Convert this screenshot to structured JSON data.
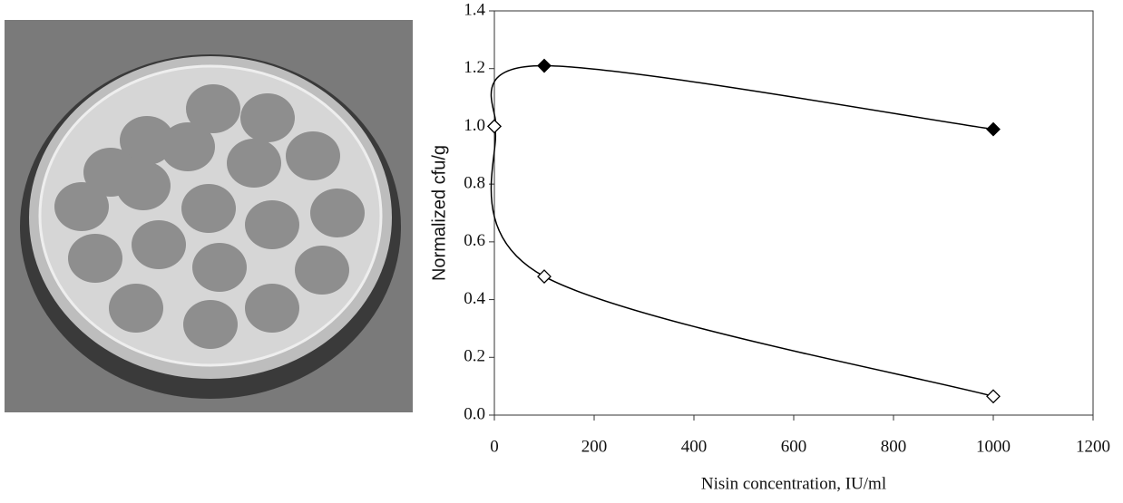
{
  "chart_data": {
    "type": "line",
    "xlabel": "Nisin concentration,  IU/ml",
    "ylabel": "Normalized cfu/g",
    "x": [
      0,
      100,
      1000
    ],
    "series": [
      {
        "color": "#000000",
        "marker_fill": "#000000",
        "values": [
          1.0,
          1.21,
          0.99
        ]
      },
      {
        "color": "#000000",
        "marker_fill": "#ffffff",
        "values": [
          1.0,
          0.48,
          0.065
        ]
      }
    ],
    "xlim": [
      0,
      1200
    ],
    "xticks": [
      0,
      200,
      400,
      600,
      800,
      1000,
      1200
    ],
    "ylim": [
      0,
      1.4
    ],
    "yticks": [
      {
        "value": 0,
        "label": "0.0"
      },
      0.2,
      0.4,
      0.6,
      0.8,
      {
        "value": 1,
        "label": "1.0"
      },
      1.2,
      1.4
    ]
  }
}
